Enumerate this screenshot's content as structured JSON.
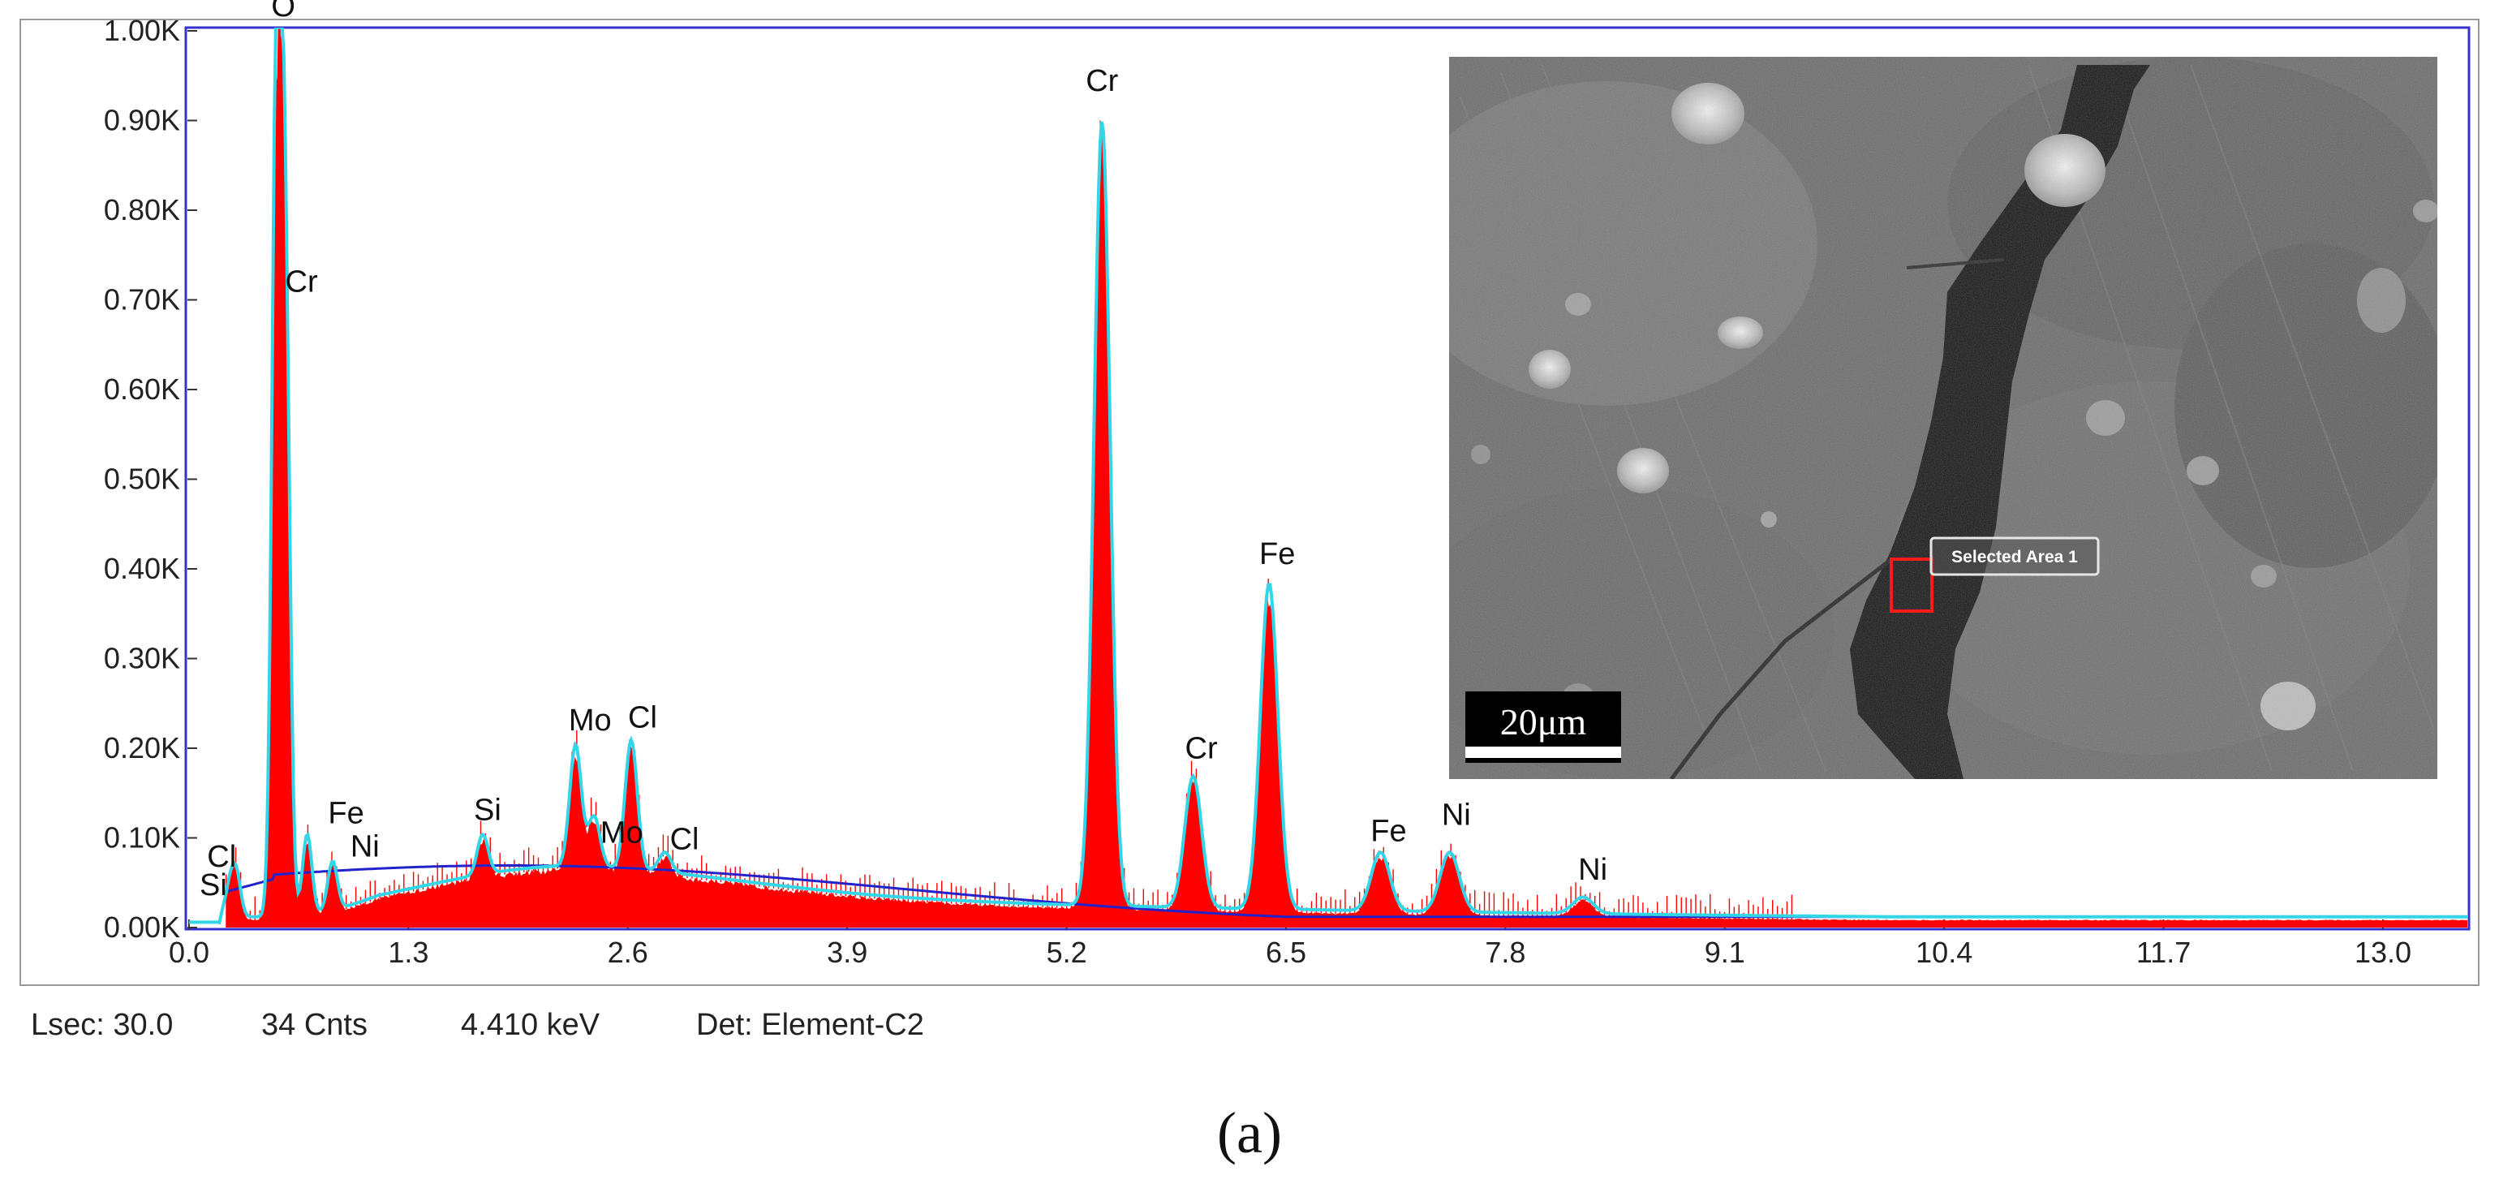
{
  "chart_data": {
    "type": "area",
    "title": "",
    "xlabel": "",
    "ylabel": "",
    "xlim": [
      0.0,
      13.5
    ],
    "ylim": [
      0,
      1000
    ],
    "x_ticks": [
      "0.0",
      "1.3",
      "2.6",
      "3.9",
      "5.2",
      "6.5",
      "7.8",
      "9.1",
      "10.4",
      "11.7",
      "13.0"
    ],
    "y_ticks": [
      "0.00K",
      "0.10K",
      "0.20K",
      "0.30K",
      "0.40K",
      "0.50K",
      "0.60K",
      "0.70K",
      "0.80K",
      "0.90K",
      "1.00K"
    ],
    "colors": {
      "spectrum_fill": "#ff0000",
      "fit_line": "#33d6e6",
      "background_line": "#2222cc",
      "frame": "#3333cc"
    },
    "peaks": [
      {
        "label": "Si",
        "x": 0.24,
        "y": 40
      },
      {
        "label": "Cl",
        "x": 0.28,
        "y": 55
      },
      {
        "label": "O",
        "x": 0.52,
        "y": 1000
      },
      {
        "label": "Cr",
        "x": 0.57,
        "y": 700
      },
      {
        "label": "Fe",
        "x": 0.7,
        "y": 100
      },
      {
        "label": "Ni",
        "x": 0.85,
        "y": 70
      },
      {
        "label": "Si",
        "x": 1.74,
        "y": 100
      },
      {
        "label": "Mo",
        "x": 2.29,
        "y": 200
      },
      {
        "label": "Mo",
        "x": 2.4,
        "y": 120
      },
      {
        "label": "Cl",
        "x": 2.62,
        "y": 205
      },
      {
        "label": "Cl",
        "x": 2.82,
        "y": 80
      },
      {
        "label": "Cr",
        "x": 5.41,
        "y": 895
      },
      {
        "label": "Cr",
        "x": 5.95,
        "y": 165
      },
      {
        "label": "Fe",
        "x": 6.4,
        "y": 380
      },
      {
        "label": "Fe",
        "x": 7.06,
        "y": 80
      },
      {
        "label": "Ni",
        "x": 7.47,
        "y": 80
      },
      {
        "label": "Ni",
        "x": 8.26,
        "y": 30
      }
    ]
  },
  "status_bar": {
    "lsec": "Lsec: 30.0",
    "counts": "34 Cnts",
    "energy": "4.410 keV",
    "detector": "Det: Element-C2"
  },
  "inset": {
    "selected_area_label": "Selected Area 1",
    "scale_bar_label": "20μm"
  },
  "caption": "(a)"
}
